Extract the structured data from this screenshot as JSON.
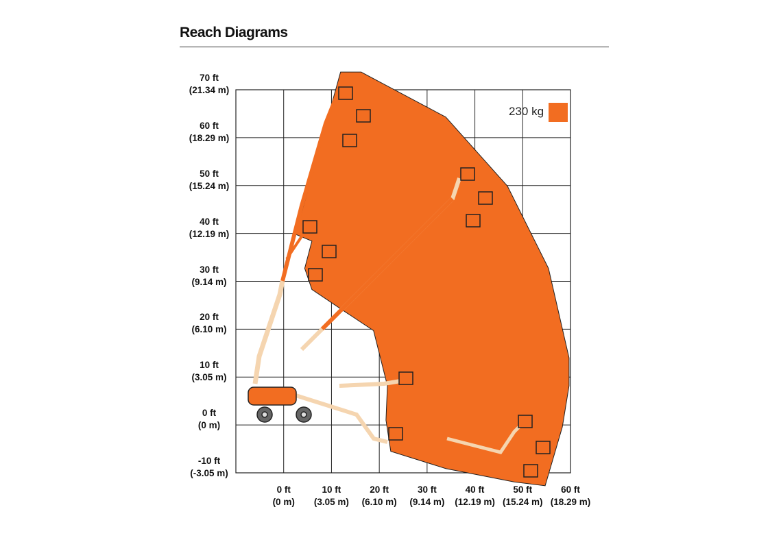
{
  "chart_data": {
    "type": "reach",
    "title": "Reach Diagrams",
    "series": [
      {
        "name": "230 kg",
        "color": "#f26d21",
        "x": [
          11.9,
          16.2,
          33.9,
          46.8,
          55.4,
          59.7,
          59.7,
          58.3,
          54.7,
          48.2,
          33.9,
          22.4,
          21.4,
          21.7,
          18.8,
          12.3,
          5.9,
          4.4,
          5.9,
          2.3,
          3.7,
          7.9
        ],
        "values": [
          73.7,
          73.7,
          64.3,
          49.9,
          32.7,
          14,
          8.2,
          -0.4,
          -12.7,
          -11.9,
          -9.1,
          -5.5,
          1,
          8.2,
          19.7,
          24,
          28.3,
          32.7,
          38.4,
          39.9,
          44.2,
          59.3
        ]
      }
    ],
    "xlim": [
      -10,
      60
    ],
    "ylim": [
      -10,
      70
    ],
    "xticks": [
      {
        "value": 0,
        "label": "0 ft\n(0 m)"
      },
      {
        "value": 10,
        "label": "10 ft\n(3.05 m)"
      },
      {
        "value": 20,
        "label": "20 ft\n(6.10 m)"
      },
      {
        "value": 30,
        "label": "30 ft\n(9.14 m)"
      },
      {
        "value": 40,
        "label": "40 ft\n(12.19 m)"
      },
      {
        "value": 50,
        "label": "50 ft\n(15.24 m)"
      },
      {
        "value": 60,
        "label": "60 ft\n(18.29 m)"
      }
    ],
    "yticks": [
      {
        "value": -10,
        "label": "-10 ft\n(-3.05 m)"
      },
      {
        "value": 0,
        "label": "0 ft\n(0 m)"
      },
      {
        "value": 10,
        "label": "10 ft\n(3.05 m)"
      },
      {
        "value": 20,
        "label": "20 ft\n(6.10 m)"
      },
      {
        "value": 30,
        "label": "30 ft\n(9.14 m)"
      },
      {
        "value": 40,
        "label": "40 ft\n(12.19 m)"
      },
      {
        "value": 50,
        "label": "50 ft\n(15.24 m)"
      },
      {
        "value": 60,
        "label": "60 ft\n(18.29 m)"
      },
      {
        "value": 70,
        "label": "70 ft\n(21.34 m)"
      }
    ],
    "grid": true
  }
}
